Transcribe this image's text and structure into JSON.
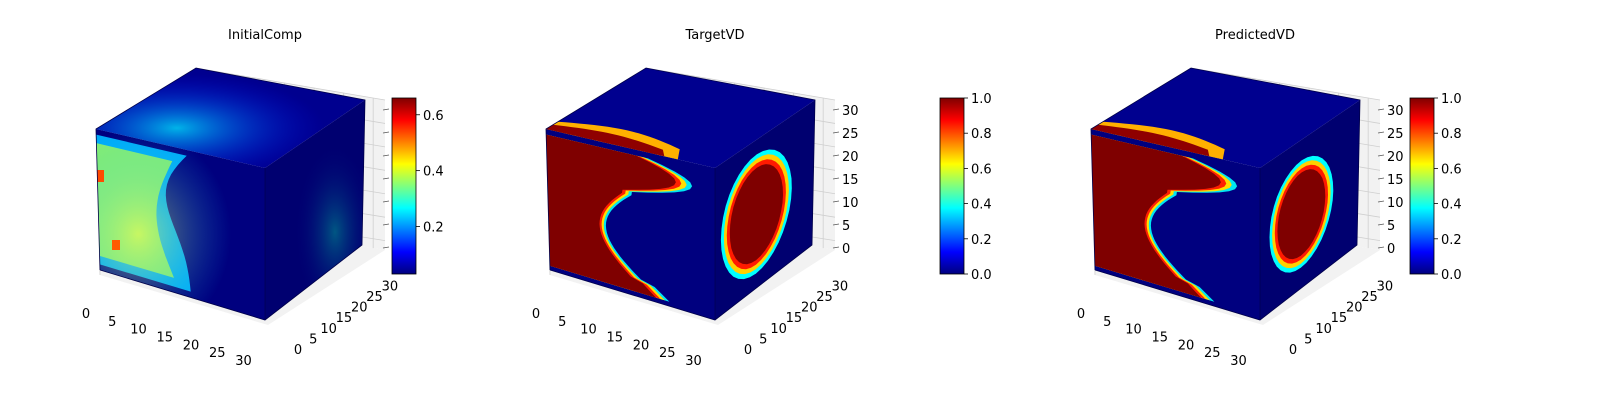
{
  "figure": {
    "colormap": "jet",
    "colormap_stops": [
      "#00007f",
      "#0000ff",
      "#007fff",
      "#00ffff",
      "#7fff7f",
      "#ffff00",
      "#ff7f00",
      "#ff0000",
      "#7f0000"
    ],
    "pane_color": "#f2f2f2",
    "grid_color": "#cfcfcf"
  },
  "chart_data": [
    {
      "type": "heatmap",
      "title": "InitialComp",
      "x_ticks": [
        "0",
        "5",
        "10",
        "15",
        "20",
        "25",
        "30"
      ],
      "y_ticks": [
        "0",
        "5",
        "10",
        "15",
        "20",
        "25",
        "30"
      ],
      "z_ticks": [
        "",
        "",
        "",
        "",
        "",
        "",
        ""
      ],
      "xlim": [
        0,
        32
      ],
      "ylim": [
        0,
        32
      ],
      "zlim": [
        0,
        32
      ],
      "colorbar": {
        "ticks": [
          "0.2",
          "0.4",
          "0.6"
        ],
        "tick_values": [
          0.2,
          0.4,
          0.6
        ],
        "range": [
          0.03,
          0.66
        ]
      }
    },
    {
      "type": "heatmap",
      "title": "TargetVD",
      "x_ticks": [
        "0",
        "5",
        "10",
        "15",
        "20",
        "25",
        "30"
      ],
      "y_ticks": [
        "0",
        "5",
        "10",
        "15",
        "20",
        "25",
        "30"
      ],
      "z_ticks": [
        "0",
        "5",
        "10",
        "15",
        "20",
        "25",
        "30"
      ],
      "xlim": [
        0,
        32
      ],
      "ylim": [
        0,
        32
      ],
      "zlim": [
        0,
        32
      ],
      "colorbar": {
        "ticks": [
          "0.0",
          "0.2",
          "0.4",
          "0.6",
          "0.8",
          "1.0"
        ],
        "tick_values": [
          0,
          0.2,
          0.4,
          0.6,
          0.8,
          1.0
        ],
        "range": [
          0,
          1
        ]
      }
    },
    {
      "type": "heatmap",
      "title": "PredictedVD",
      "x_ticks": [
        "0",
        "5",
        "10",
        "15",
        "20",
        "25",
        "30"
      ],
      "y_ticks": [
        "0",
        "5",
        "10",
        "15",
        "20",
        "25",
        "30"
      ],
      "z_ticks": [
        "0",
        "5",
        "10",
        "15",
        "20",
        "25",
        "30"
      ],
      "xlim": [
        0,
        32
      ],
      "ylim": [
        0,
        32
      ],
      "zlim": [
        0,
        32
      ],
      "colorbar": {
        "ticks": [
          "0.0",
          "0.2",
          "0.4",
          "0.6",
          "0.8",
          "1.0"
        ],
        "tick_values": [
          0,
          0.2,
          0.4,
          0.6,
          0.8,
          1.0
        ],
        "range": [
          0,
          1
        ]
      }
    }
  ]
}
